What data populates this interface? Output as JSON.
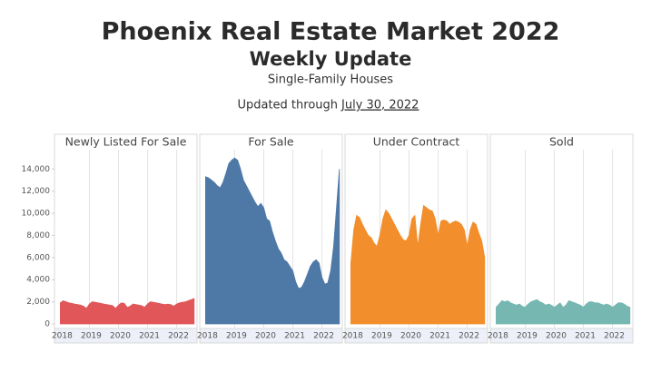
{
  "header": {
    "title": "Phoenix Real Estate Market 2022",
    "subtitle": "Weekly Update",
    "note": "Single-Family Houses",
    "updated_label": "Updated through",
    "updated_date": "July 30, 2022"
  },
  "chart_data": [
    {
      "type": "area",
      "title": "Newly Listed For Sale",
      "color": "#e15759",
      "grid": true,
      "x": [
        2018.0,
        2018.1,
        2018.2,
        2018.3,
        2018.4,
        2018.5,
        2018.6,
        2018.7,
        2018.8,
        2018.9,
        2019.0,
        2019.1,
        2019.2,
        2019.3,
        2019.4,
        2019.5,
        2019.6,
        2019.7,
        2019.8,
        2019.9,
        2020.0,
        2020.1,
        2020.2,
        2020.3,
        2020.4,
        2020.5,
        2020.6,
        2020.7,
        2020.8,
        2020.9,
        2021.0,
        2021.1,
        2021.2,
        2021.3,
        2021.4,
        2021.5,
        2021.6,
        2021.7,
        2021.8,
        2021.9,
        2022.0,
        2022.1,
        2022.2,
        2022.3,
        2022.4,
        2022.5,
        2022.6
      ],
      "values": [
        1900,
        2100,
        2000,
        1900,
        1850,
        1800,
        1750,
        1700,
        1600,
        1400,
        1800,
        2000,
        1950,
        1900,
        1850,
        1800,
        1750,
        1700,
        1650,
        1400,
        1700,
        1900,
        1850,
        1500,
        1600,
        1800,
        1750,
        1700,
        1650,
        1500,
        1800,
        2000,
        1950,
        1900,
        1850,
        1800,
        1750,
        1800,
        1750,
        1600,
        1800,
        1900,
        1950,
        2000,
        2100,
        2200,
        2300
      ],
      "xlim": [
        2017.8,
        2022.7
      ],
      "xticks": [
        2018,
        2019,
        2020,
        2021,
        2022
      ],
      "ylim": [
        0,
        15500
      ],
      "yticks": [
        0,
        {
          "value": 2000,
          "label": "2,000"
        },
        {
          "value": 4000,
          "label": "4,000"
        },
        {
          "value": 6000,
          "label": "6,000"
        },
        {
          "value": 8000,
          "label": "8,000"
        },
        {
          "value": 10000,
          "label": "10,000"
        },
        {
          "value": 12000,
          "label": "12,000"
        },
        {
          "value": 14000,
          "label": "14,000"
        }
      ]
    },
    {
      "type": "area",
      "title": "For Sale",
      "color": "#4e79a7",
      "grid": true,
      "x": [
        2018.0,
        2018.1,
        2018.2,
        2018.3,
        2018.4,
        2018.5,
        2018.6,
        2018.7,
        2018.8,
        2018.9,
        2019.0,
        2019.1,
        2019.2,
        2019.3,
        2019.4,
        2019.5,
        2019.6,
        2019.7,
        2019.8,
        2019.9,
        2020.0,
        2020.1,
        2020.2,
        2020.3,
        2020.4,
        2020.5,
        2020.6,
        2020.7,
        2020.8,
        2020.9,
        2021.0,
        2021.1,
        2021.2,
        2021.3,
        2021.4,
        2021.5,
        2021.6,
        2021.7,
        2021.8,
        2021.9,
        2022.0,
        2022.1,
        2022.2,
        2022.3,
        2022.4,
        2022.5,
        2022.6
      ],
      "values": [
        13300,
        13200,
        13000,
        12800,
        12500,
        12300,
        12800,
        13600,
        14500,
        14800,
        15000,
        14800,
        14000,
        13000,
        12500,
        12000,
        11500,
        11000,
        10600,
        10900,
        10500,
        9500,
        9300,
        8300,
        7500,
        6800,
        6400,
        5800,
        5600,
        5200,
        4800,
        3800,
        3200,
        3300,
        3800,
        4500,
        5200,
        5600,
        5800,
        5500,
        4200,
        3600,
        3700,
        4800,
        7000,
        10500,
        14000
      ],
      "xlim": [
        2017.8,
        2022.7
      ],
      "xticks": [
        2018,
        2019,
        2020,
        2021,
        2022
      ],
      "ylim": [
        0,
        15500
      ]
    },
    {
      "type": "area",
      "title": "Under Contract",
      "color": "#f28e2b",
      "grid": true,
      "x": [
        2018.0,
        2018.1,
        2018.2,
        2018.3,
        2018.4,
        2018.5,
        2018.6,
        2018.7,
        2018.8,
        2018.9,
        2019.0,
        2019.1,
        2019.2,
        2019.3,
        2019.4,
        2019.5,
        2019.6,
        2019.7,
        2019.8,
        2019.9,
        2020.0,
        2020.1,
        2020.2,
        2020.3,
        2020.4,
        2020.5,
        2020.6,
        2020.7,
        2020.8,
        2020.9,
        2021.0,
        2021.1,
        2021.2,
        2021.3,
        2021.4,
        2021.5,
        2021.6,
        2021.7,
        2021.8,
        2021.9,
        2022.0,
        2022.1,
        2022.2,
        2022.3,
        2022.4,
        2022.5,
        2022.6
      ],
      "values": [
        5500,
        8500,
        9800,
        9600,
        9000,
        8500,
        8000,
        7800,
        7300,
        7000,
        8000,
        9500,
        10300,
        10000,
        9500,
        9000,
        8500,
        8000,
        7600,
        7500,
        8000,
        9500,
        9800,
        7000,
        9000,
        10700,
        10500,
        10300,
        10200,
        9500,
        8000,
        9300,
        9400,
        9300,
        9000,
        9200,
        9300,
        9200,
        9000,
        8500,
        7000,
        8500,
        9200,
        9000,
        8200,
        7500,
        6000
      ],
      "xlim": [
        2017.8,
        2022.7
      ],
      "xticks": [
        2018,
        2019,
        2020,
        2021,
        2022
      ],
      "ylim": [
        0,
        15500
      ]
    },
    {
      "type": "area",
      "title": "Sold",
      "color": "#76b7b2",
      "grid": true,
      "x": [
        2018.0,
        2018.1,
        2018.2,
        2018.3,
        2018.4,
        2018.5,
        2018.6,
        2018.7,
        2018.8,
        2018.9,
        2019.0,
        2019.1,
        2019.2,
        2019.3,
        2019.4,
        2019.5,
        2019.6,
        2019.7,
        2019.8,
        2019.9,
        2020.0,
        2020.1,
        2020.2,
        2020.3,
        2020.4,
        2020.5,
        2020.6,
        2020.7,
        2020.8,
        2020.9,
        2021.0,
        2021.1,
        2021.2,
        2021.3,
        2021.4,
        2021.5,
        2021.6,
        2021.7,
        2021.8,
        2021.9,
        2022.0,
        2022.1,
        2022.2,
        2022.3,
        2022.4,
        2022.5,
        2022.6
      ],
      "values": [
        1500,
        1800,
        2100,
        2000,
        2100,
        1900,
        1800,
        1700,
        1800,
        1600,
        1500,
        1800,
        2000,
        2100,
        2200,
        2000,
        1900,
        1700,
        1800,
        1700,
        1500,
        1700,
        1900,
        1500,
        1700,
        2100,
        2000,
        1900,
        1800,
        1700,
        1500,
        1800,
        2000,
        2000,
        1900,
        1900,
        1800,
        1700,
        1800,
        1700,
        1500,
        1700,
        1900,
        1900,
        1800,
        1600,
        1500
      ],
      "xlim": [
        2017.8,
        2022.7
      ],
      "xticks": [
        2018,
        2019,
        2020,
        2021,
        2022
      ],
      "ylim": [
        0,
        15500
      ]
    }
  ]
}
